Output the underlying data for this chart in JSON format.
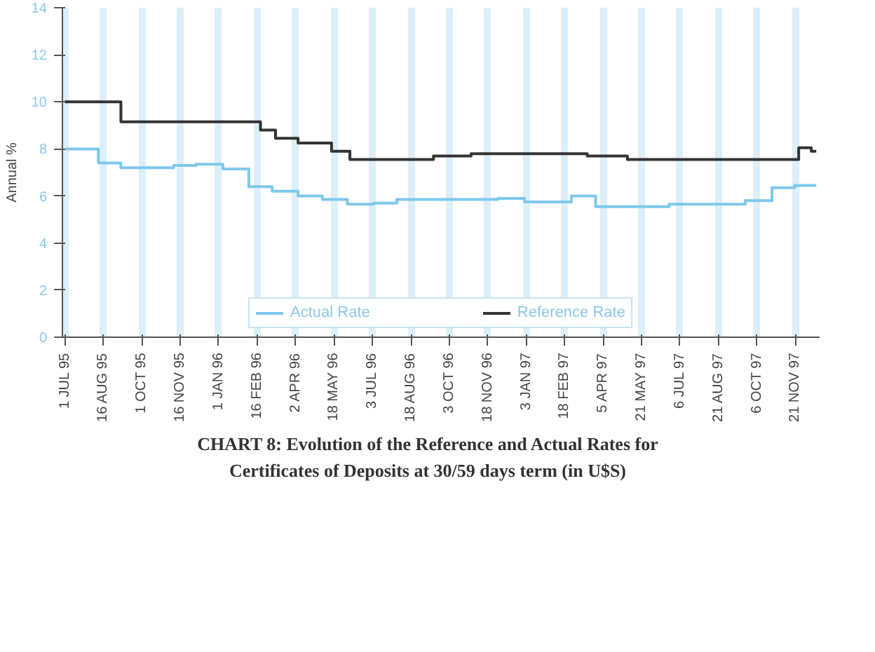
{
  "chart_data": {
    "type": "step",
    "title": "CHART 8: Evolution of the Reference and Actual Rates for\nCertificates of Deposits at 30/59 days term (in U$S)",
    "ylabel": "Annual %",
    "xlim": [
      "1995-06-28",
      "1997-12-20"
    ],
    "ylim": [
      0,
      14
    ],
    "yticks": [
      0,
      2,
      4,
      6,
      8,
      10,
      12,
      14
    ],
    "xticks": [
      {
        "value": "1995-07-01",
        "label": "1 JUL 95"
      },
      {
        "value": "1995-08-16",
        "label": "16 AUG 95"
      },
      {
        "value": "1995-10-01",
        "label": "1 OCT 95"
      },
      {
        "value": "1995-11-16",
        "label": "16 NOV 95"
      },
      {
        "value": "1996-01-01",
        "label": "1 JAN 96"
      },
      {
        "value": "1996-02-16",
        "label": "16 FEB 96"
      },
      {
        "value": "1996-04-02",
        "label": "2 APR 96"
      },
      {
        "value": "1996-05-18",
        "label": "18 MAY 96"
      },
      {
        "value": "1996-07-03",
        "label": "3 JUL 96"
      },
      {
        "value": "1996-08-18",
        "label": "18 AUG 96"
      },
      {
        "value": "1996-10-03",
        "label": "3 OCT 96"
      },
      {
        "value": "1996-11-18",
        "label": "18 NOV 96"
      },
      {
        "value": "1997-01-03",
        "label": "3 JAN 97"
      },
      {
        "value": "1997-02-18",
        "label": "18 FEB 97"
      },
      {
        "value": "1997-04-05",
        "label": "5 APR 97"
      },
      {
        "value": "1997-05-21",
        "label": "21 MAY 97"
      },
      {
        "value": "1997-07-06",
        "label": "6 JUL 97"
      },
      {
        "value": "1997-08-21",
        "label": "21 AUG 97"
      },
      {
        "value": "1997-10-06",
        "label": "6 OCT 97"
      },
      {
        "value": "1997-11-21",
        "label": "21 NOV 97"
      }
    ],
    "grid": "x",
    "legend": "bottom",
    "line_style": "solid",
    "series": [
      {
        "name": "Actual Rate",
        "color": "#7ec8ec",
        "x": [
          "1995-07-01",
          "1995-08-10",
          "1995-09-06",
          "1995-11-08",
          "1995-12-05",
          "1996-01-06",
          "1996-02-06",
          "1996-03-05",
          "1996-04-05",
          "1996-05-04",
          "1996-06-03",
          "1996-07-04",
          "1996-08-01",
          "1996-11-30",
          "1997-01-01",
          "1997-02-26",
          "1997-03-27",
          "1997-06-23",
          "1997-09-22",
          "1997-10-24",
          "1997-11-20",
          "1997-12-16"
        ],
        "values": [
          8.0,
          7.4,
          7.2,
          7.3,
          7.35,
          7.15,
          6.4,
          6.2,
          6.0,
          5.85,
          5.65,
          5.7,
          5.85,
          5.9,
          5.75,
          6.0,
          5.55,
          5.65,
          5.8,
          6.35,
          6.45,
          6.45
        ]
      },
      {
        "name": "Reference Rate",
        "color": "#333333",
        "x": [
          "1995-07-01",
          "1995-09-06",
          "1996-02-20",
          "1996-03-09",
          "1996-04-05",
          "1996-05-15",
          "1996-06-06",
          "1996-09-14",
          "1996-10-29",
          "1997-03-17",
          "1997-05-04",
          "1997-11-25",
          "1997-12-10",
          "1997-12-16"
        ],
        "values": [
          10.0,
          9.15,
          8.8,
          8.45,
          8.25,
          7.9,
          7.55,
          7.7,
          7.8,
          7.7,
          7.55,
          8.05,
          7.9,
          7.9
        ]
      }
    ]
  }
}
